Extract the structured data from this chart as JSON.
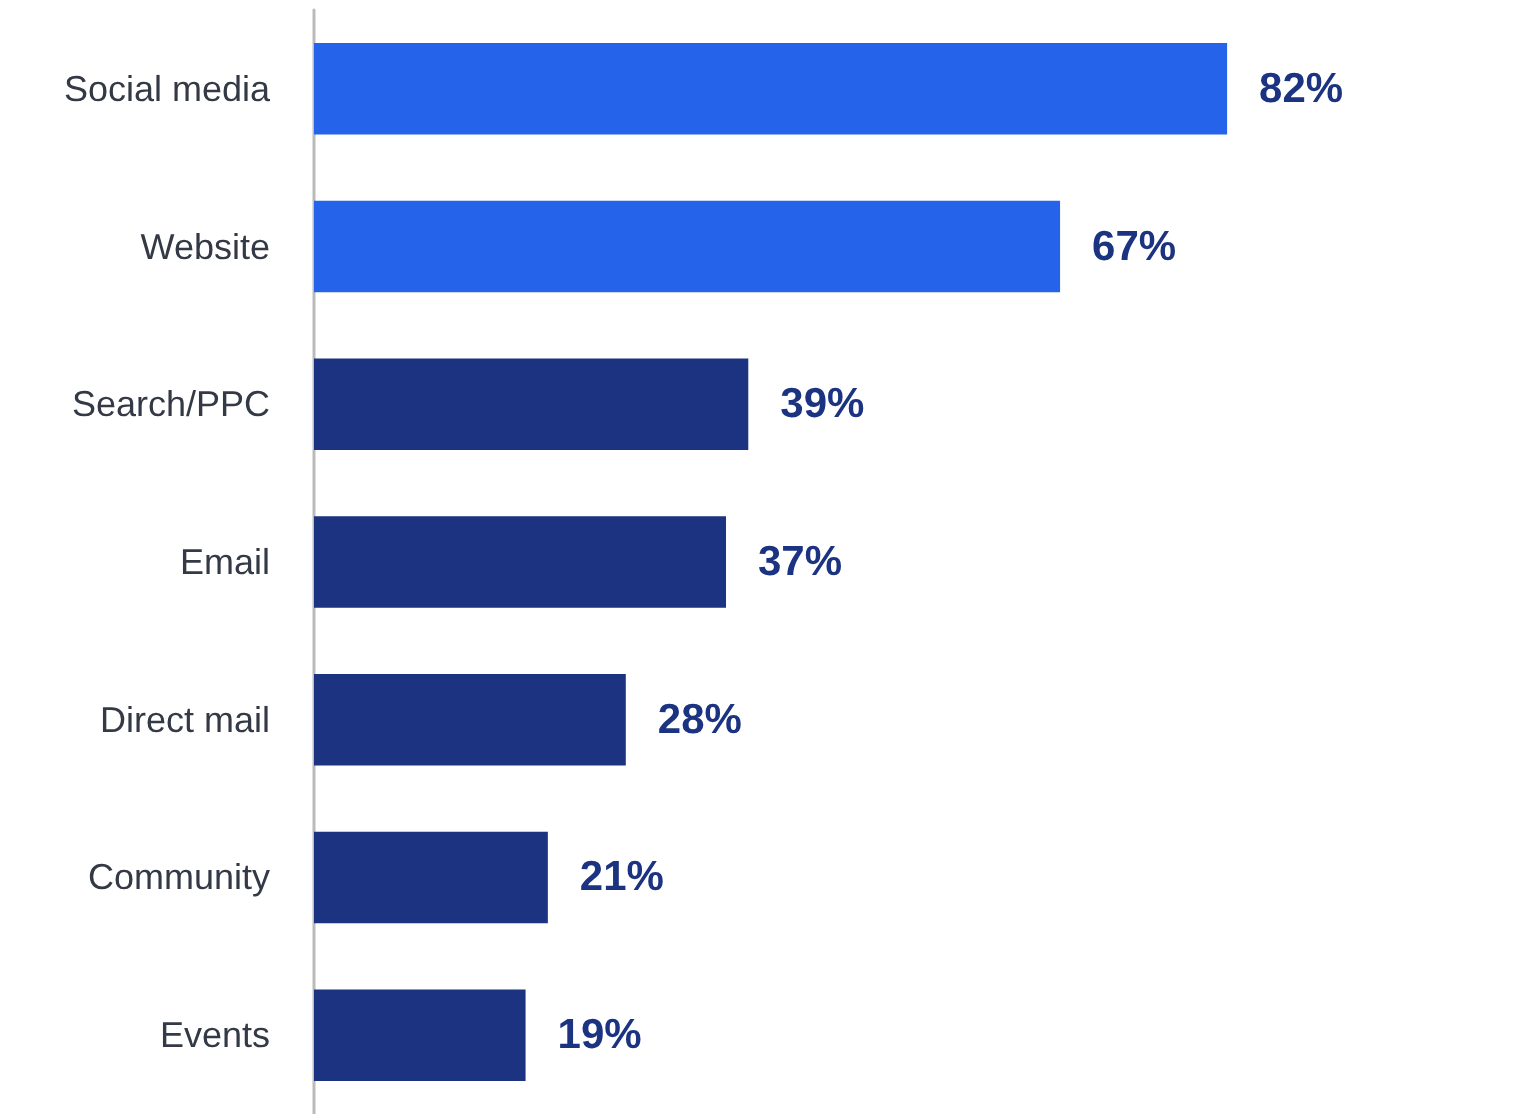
{
  "chart_data": {
    "type": "bar",
    "orientation": "horizontal",
    "categories": [
      "Social media",
      "Website",
      "Search/PPC",
      "Email",
      "Direct mail",
      "Community",
      "Events"
    ],
    "values": [
      82,
      67,
      39,
      37,
      28,
      21,
      19
    ],
    "value_labels": [
      "82%",
      "67%",
      "39%",
      "37%",
      "28%",
      "21%",
      "19%"
    ],
    "colors": [
      "#2563eb",
      "#2563eb",
      "#1b3380",
      "#1b3380",
      "#1b3380",
      "#1b3380",
      "#1b3380"
    ],
    "tick_labels": "y",
    "grid": false
  }
}
